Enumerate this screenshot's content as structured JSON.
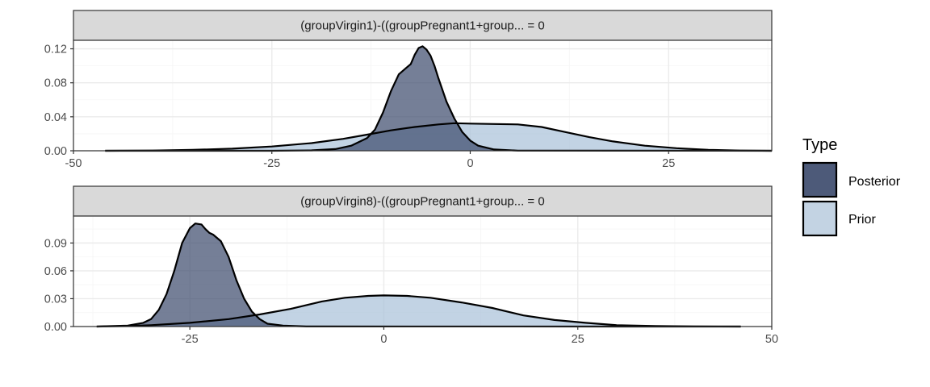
{
  "chart_data": [
    {
      "type": "area",
      "strip_label": "(groupVirgin1)-((groupPregnant1+group... = 0",
      "xlim": [
        -50,
        38
      ],
      "ylim": [
        0,
        0.13
      ],
      "x_ticks": [
        -50,
        -25,
        0,
        25
      ],
      "x_tick_labels": [
        "-50",
        "-25",
        "0",
        "25"
      ],
      "y_ticks": [
        0,
        0.04,
        0.08,
        0.12
      ],
      "y_tick_labels": [
        "0.00",
        "0.04",
        "0.08",
        "0.12"
      ],
      "series": [
        {
          "name": "Prior",
          "points": [
            [
              -46,
              0
            ],
            [
              -40,
              0.0003
            ],
            [
              -35,
              0.001
            ],
            [
              -30,
              0.0025
            ],
            [
              -25,
              0.005
            ],
            [
              -20,
              0.009
            ],
            [
              -16,
              0.014
            ],
            [
              -13,
              0.019
            ],
            [
              -10,
              0.024
            ],
            [
              -7,
              0.028
            ],
            [
              -4,
              0.031
            ],
            [
              -2,
              0.0325
            ],
            [
              0,
              0.032
            ],
            [
              3,
              0.0315
            ],
            [
              6,
              0.031
            ],
            [
              9,
              0.028
            ],
            [
              12,
              0.022
            ],
            [
              15,
              0.016
            ],
            [
              18,
              0.011
            ],
            [
              22,
              0.006
            ],
            [
              26,
              0.003
            ],
            [
              30,
              0.001
            ],
            [
              34,
              0.0003
            ],
            [
              38,
              0
            ]
          ]
        },
        {
          "name": "Posterior",
          "points": [
            [
              -46,
              0
            ],
            [
              -25,
              0
            ],
            [
              -20,
              0.0005
            ],
            [
              -17,
              0.002
            ],
            [
              -15,
              0.006
            ],
            [
              -13,
              0.015
            ],
            [
              -12,
              0.025
            ],
            [
              -11,
              0.045
            ],
            [
              -10,
              0.07
            ],
            [
              -9,
              0.09
            ],
            [
              -8,
              0.098
            ],
            [
              -7.5,
              0.102
            ],
            [
              -7,
              0.113
            ],
            [
              -6.5,
              0.121
            ],
            [
              -6,
              0.123
            ],
            [
              -5.5,
              0.119
            ],
            [
              -5,
              0.112
            ],
            [
              -4.5,
              0.1
            ],
            [
              -4,
              0.085
            ],
            [
              -3,
              0.058
            ],
            [
              -2,
              0.038
            ],
            [
              -1,
              0.022
            ],
            [
              0,
              0.012
            ],
            [
              1,
              0.006
            ],
            [
              3,
              0.0015
            ],
            [
              6,
              0.0002
            ],
            [
              38,
              0
            ]
          ]
        }
      ]
    },
    {
      "type": "area",
      "strip_label": "(groupVirgin8)-((groupPregnant1+group... = 0",
      "xlim": [
        -40,
        50
      ],
      "ylim": [
        0,
        0.119
      ],
      "x_ticks": [
        -25,
        0,
        25,
        50
      ],
      "x_tick_labels": [
        "-25",
        "0",
        "25",
        "50"
      ],
      "y_ticks": [
        0,
        0.03,
        0.06,
        0.09
      ],
      "y_tick_labels": [
        "0.00",
        "0.03",
        "0.06",
        "0.09"
      ],
      "series": [
        {
          "name": "Prior",
          "points": [
            [
              -37,
              0
            ],
            [
              -33,
              0.0005
            ],
            [
              -30,
              0.0015
            ],
            [
              -25,
              0.004
            ],
            [
              -20,
              0.008
            ],
            [
              -16,
              0.013
            ],
            [
              -12,
              0.019
            ],
            [
              -8,
              0.027
            ],
            [
              -5,
              0.031
            ],
            [
              -2,
              0.033
            ],
            [
              0,
              0.0335
            ],
            [
              3,
              0.033
            ],
            [
              6,
              0.031
            ],
            [
              10,
              0.026
            ],
            [
              14,
              0.02
            ],
            [
              18,
              0.012
            ],
            [
              22,
              0.007
            ],
            [
              26,
              0.004
            ],
            [
              30,
              0.0015
            ],
            [
              35,
              0.0005
            ],
            [
              40,
              0.0001
            ],
            [
              46,
              0
            ]
          ]
        },
        {
          "name": "Posterior",
          "points": [
            [
              -37,
              0
            ],
            [
              -33,
              0.001
            ],
            [
              -31,
              0.004
            ],
            [
              -30,
              0.008
            ],
            [
              -29,
              0.018
            ],
            [
              -28,
              0.035
            ],
            [
              -27,
              0.06
            ],
            [
              -26,
              0.09
            ],
            [
              -25,
              0.106
            ],
            [
              -24.3,
              0.111
            ],
            [
              -23.5,
              0.11
            ],
            [
              -23,
              0.105
            ],
            [
              -22.5,
              0.101
            ],
            [
              -22,
              0.099
            ],
            [
              -21,
              0.092
            ],
            [
              -20,
              0.075
            ],
            [
              -19,
              0.05
            ],
            [
              -18,
              0.03
            ],
            [
              -17,
              0.016
            ],
            [
              -16,
              0.008
            ],
            [
              -15,
              0.003
            ],
            [
              -13,
              0.001
            ],
            [
              -10,
              0.0001
            ],
            [
              46,
              0
            ]
          ]
        }
      ]
    }
  ],
  "legend": {
    "title": "Type",
    "items": [
      {
        "label": "Posterior",
        "color": "#4d5a79"
      },
      {
        "label": "Prior",
        "color": "#c3d3e3"
      }
    ]
  },
  "colors": {
    "posterior_fill": "#3a486b",
    "prior_fill": "#a8c1d9",
    "strip_fill": "#d9d9d9",
    "strip_border": "#333333",
    "grid_major": "#ebebeb",
    "grid_minor": "#f5f5f5"
  }
}
